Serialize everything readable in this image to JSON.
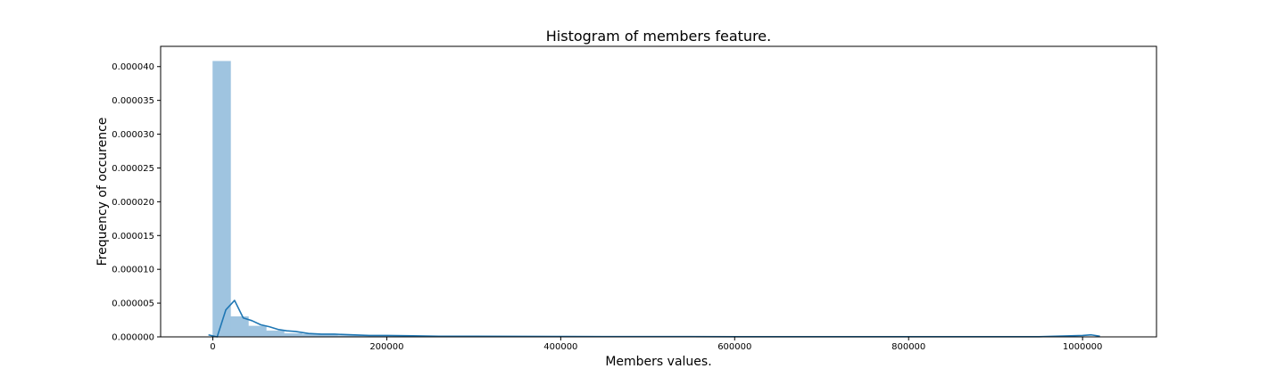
{
  "chart_data": {
    "type": "bar",
    "title": "Histogram of members feature.",
    "xlabel": "Members values.",
    "ylabel": "Frequency of occurence",
    "xlim": [
      -60000,
      1085000
    ],
    "ylim": [
      0,
      4.3e-05
    ],
    "xticks": [
      0,
      200000,
      400000,
      600000,
      800000,
      1000000
    ],
    "xtick_labels": [
      "0",
      "200000",
      "400000",
      "600000",
      "800000",
      "1000000"
    ],
    "yticks": [
      0,
      5e-06,
      1e-05,
      1.5e-05,
      2e-05,
      2.5e-05,
      3e-05,
      3.5e-05,
      4e-05
    ],
    "ytick_labels": [
      "0.000000",
      "0.000005",
      "0.000010",
      "0.000015",
      "0.000020",
      "0.000025",
      "0.000030",
      "0.000035",
      "0.000040"
    ],
    "grid": false,
    "bin_width": 20500,
    "bins_start": 0,
    "values": [
      4.08e-05,
      3e-06,
      1.6e-06,
      9e-07,
      5e-07,
      4e-07,
      3e-07,
      2e-07,
      2e-07,
      1e-07,
      1e-07,
      1e-07,
      1e-07,
      5e-08,
      5e-08,
      4e-08,
      3e-08,
      3e-08,
      2e-08,
      2e-08,
      2e-08,
      1e-08,
      1e-08,
      1e-08,
      1e-08,
      1e-08,
      1e-08,
      1e-08,
      1e-08,
      1e-08,
      1e-08,
      1e-08,
      1e-08,
      1e-08,
      1e-08,
      1e-08,
      1e-08,
      1e-08,
      1e-08,
      1e-08,
      1e-08,
      1e-08,
      1e-08,
      1e-08,
      1e-08,
      1e-08,
      1e-08,
      1e-08,
      1e-08,
      1e-08
    ],
    "series": [
      {
        "type": "kde-line",
        "x": [
          -5000,
          5000,
          15000,
          25000,
          35000,
          45000,
          55000,
          65000,
          75000,
          85000,
          95000,
          110000,
          125000,
          140000,
          160000,
          180000,
          200000,
          230000,
          260000,
          300000,
          350000,
          400000,
          450000,
          500000,
          550000,
          600000,
          650000,
          700000,
          750000,
          800000,
          850000,
          900000,
          950000,
          1000000,
          1010000,
          1020000
        ],
        "y": [
          3e-07,
          0.0,
          4e-06,
          5.4e-06,
          2.8e-06,
          2.4e-06,
          1.8e-06,
          1.5e-06,
          1.1e-06,
          9e-07,
          8e-07,
          5e-07,
          4e-07,
          4e-07,
          3e-07,
          2e-07,
          2e-07,
          1.5e-07,
          1e-07,
          1e-07,
          8e-08,
          6e-08,
          5e-08,
          4e-08,
          4e-08,
          3e-08,
          3e-08,
          3e-08,
          2e-08,
          2e-08,
          2e-08,
          2e-08,
          2e-08,
          2e-07,
          3e-07,
          1e-07
        ]
      }
    ],
    "colors": {
      "bar_fill": "#9fc4e0",
      "bar_edge": "#9fc4e0",
      "kde_line": "#1f77b4",
      "axes": "#000000"
    }
  }
}
